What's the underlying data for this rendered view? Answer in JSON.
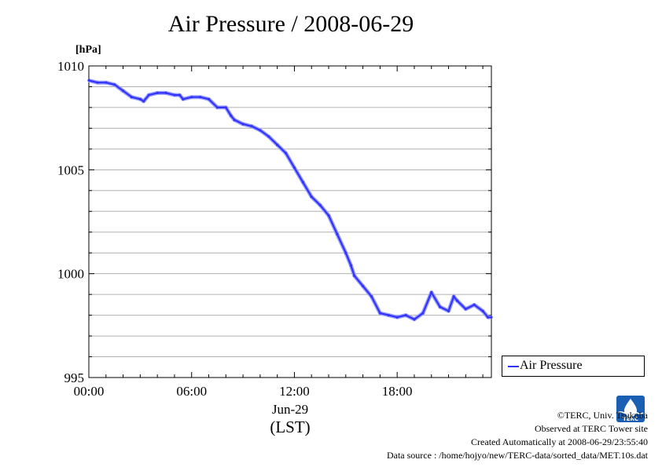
{
  "chart_data": {
    "type": "line",
    "title": "Air Pressure / 2008-06-29",
    "ylabel": "[hPa]",
    "xlabel": "",
    "x_date_label": "Jun-29",
    "x_timezone_label": "(LST)",
    "ylim": [
      995,
      1010
    ],
    "y_ticks": [
      "995",
      "1000",
      "1005",
      "1010"
    ],
    "xlim_hours": [
      0,
      23.5
    ],
    "x_ticks": [
      "00:00",
      "06:00",
      "12:00",
      "18:00"
    ],
    "x_tick_hours": [
      0,
      6,
      12,
      18
    ],
    "grid": true,
    "legend_position": "right",
    "series": [
      {
        "name": "Air Pressure",
        "color": "#3333ff",
        "x": [
          0,
          0.5,
          1,
          1.5,
          2,
          2.5,
          3,
          3.2,
          3.5,
          4,
          4.5,
          5,
          5.3,
          5.5,
          6,
          6.5,
          7,
          7.5,
          8,
          8.3,
          8.5,
          9,
          9.5,
          10,
          10.5,
          11,
          11.5,
          12,
          12.5,
          13,
          13.5,
          14,
          14.5,
          15,
          15.3,
          15.5,
          16,
          16.5,
          17,
          17.5,
          18,
          18.5,
          19,
          19.5,
          20,
          20.5,
          21,
          21.3,
          21.5,
          22,
          22.5,
          23,
          23.3,
          23.5
        ],
        "y": [
          1009.3,
          1009.2,
          1009.2,
          1009.1,
          1008.8,
          1008.5,
          1008.4,
          1008.3,
          1008.6,
          1008.7,
          1008.7,
          1008.6,
          1008.6,
          1008.4,
          1008.5,
          1008.5,
          1008.4,
          1008.0,
          1008.0,
          1007.6,
          1007.4,
          1007.2,
          1007.1,
          1006.9,
          1006.6,
          1006.2,
          1005.8,
          1005.1,
          1004.4,
          1003.7,
          1003.3,
          1002.8,
          1001.9,
          1001.0,
          1000.4,
          999.9,
          999.4,
          998.9,
          998.1,
          998.0,
          997.9,
          998.0,
          997.8,
          998.1,
          999.1,
          998.4,
          998.2,
          998.9,
          998.7,
          998.3,
          998.5,
          998.2,
          997.9,
          997.9
        ]
      }
    ]
  },
  "credits": {
    "copyright": "©TERC, Univ. Tsukuba",
    "observed": "Observed at TERC Tower site",
    "created": "Created Automatically at 2008-06-29/23:55:40",
    "source": "Data source : /home/hojyo/new/TERC-data/sorted_data/MET.10s.dat"
  },
  "logo": {
    "text": "TERC",
    "color": "#1a5fb4",
    "icon": "terc-logo-icon"
  }
}
